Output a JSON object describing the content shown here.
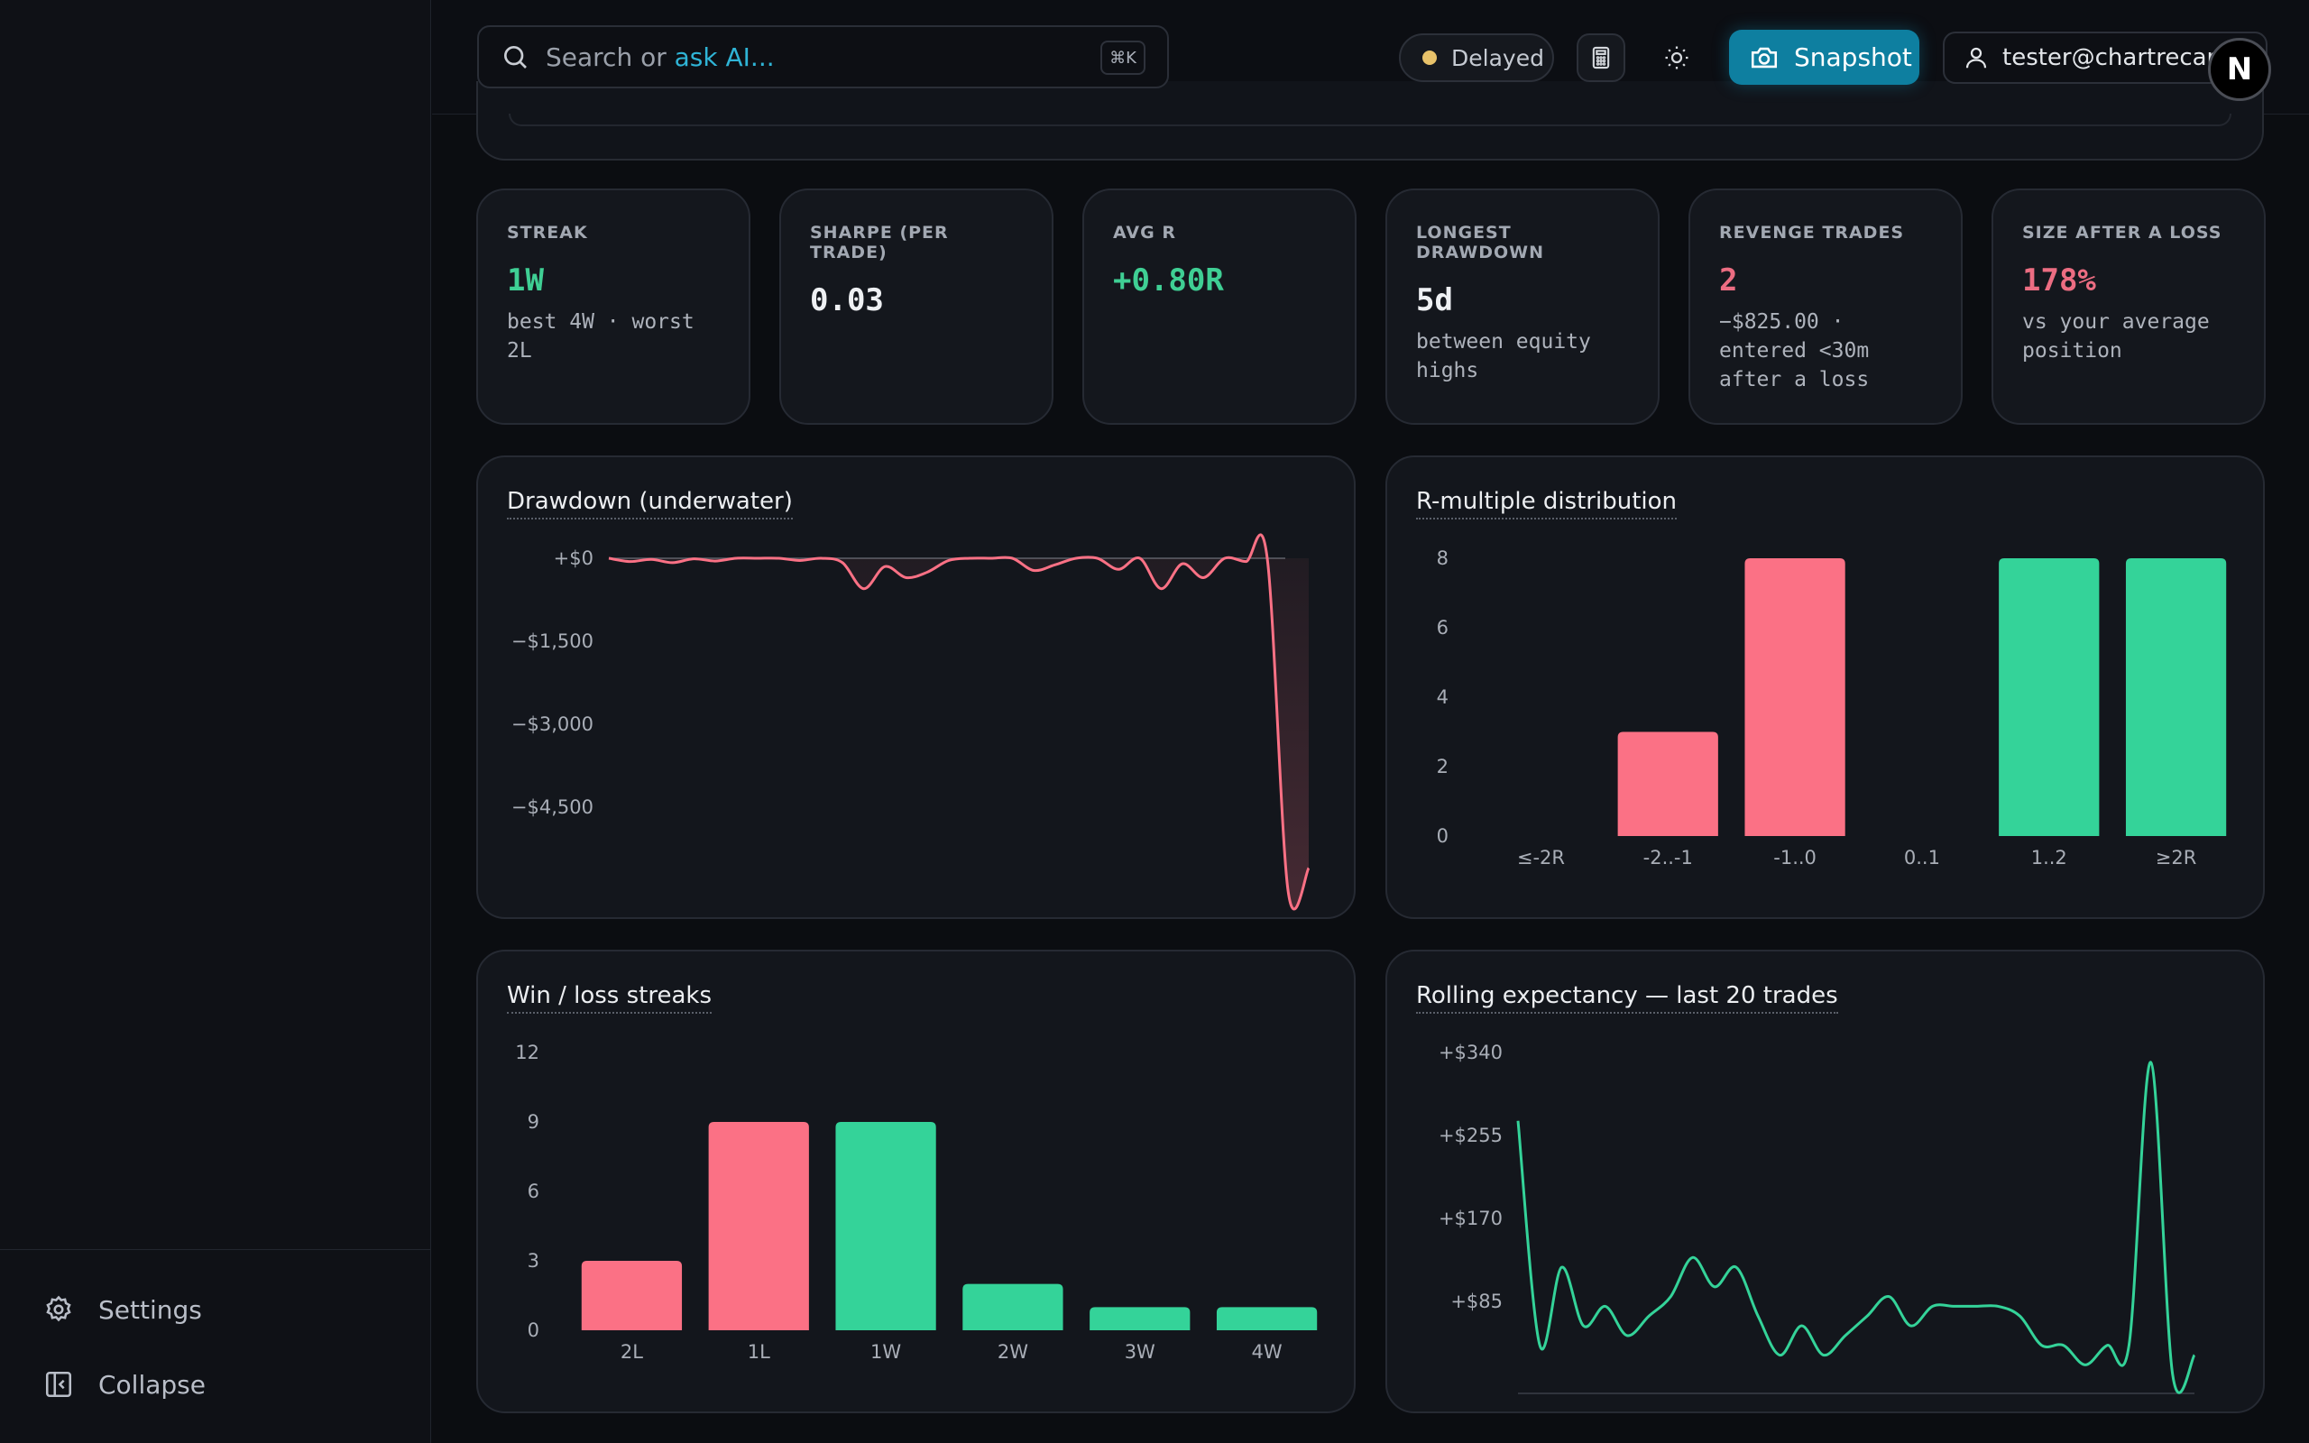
{
  "sidebar": {
    "settings_label": "Settings",
    "collapse_label": "Collapse"
  },
  "search": {
    "placeholder_prefix": "Search or ",
    "placeholder_ai": "ask AI...",
    "shortcut": "⌘K"
  },
  "header": {
    "status_label": "Delayed",
    "status_color": "#e8c26a",
    "snapshot_label": "Snapshot",
    "user_email": "tester@chartrecap.",
    "avatar_letter": "N"
  },
  "stats": [
    {
      "label": "STREAK",
      "value": "1W",
      "value_color": "green",
      "sub": "best 4W · worst 2L"
    },
    {
      "label": "SHARPE (PER TRADE)",
      "value": "0.03",
      "value_color": "white",
      "sub": ""
    },
    {
      "label": "AVG R",
      "value": "+0.80R",
      "value_color": "green",
      "sub": ""
    },
    {
      "label": "LONGEST DRAWDOWN",
      "value": "5d",
      "value_color": "white",
      "sub": "between equity highs"
    },
    {
      "label": "REVENGE TRADES",
      "value": "2",
      "value_color": "red",
      "sub": "−$825.00 · entered <30m after a loss"
    },
    {
      "label": "SIZE AFTER A LOSS",
      "value": "178%",
      "value_color": "red",
      "sub": "vs your average position"
    }
  ],
  "colors": {
    "positive": "#34d399",
    "negative": "#fb7185"
  },
  "chart_data": [
    {
      "id": "drawdown",
      "type": "area",
      "title": "Drawdown (underwater)",
      "yticks": [
        0,
        -1500,
        -3000,
        -4500
      ],
      "ytick_labels": [
        "+$0",
        "−$1,500",
        "−$3,000",
        "−$4,500"
      ],
      "ylim": [
        -6000,
        0
      ],
      "values": [
        0,
        -60,
        -20,
        -80,
        -10,
        -50,
        0,
        0,
        0,
        -40,
        0,
        -80,
        -550,
        -150,
        -350,
        -250,
        -40,
        0,
        0,
        0,
        -220,
        -120,
        0,
        0,
        -200,
        0,
        -550,
        -100,
        -350,
        0,
        -60,
        0,
        -6000,
        -5600
      ]
    },
    {
      "id": "r-multiple",
      "type": "bar",
      "title": "R-multiple distribution",
      "categories": [
        "≤-2R",
        "-2..-1",
        "-1..0",
        "0..1",
        "1..2",
        "≥2R"
      ],
      "values": [
        0,
        3,
        8,
        0,
        8,
        8
      ],
      "signs": [
        "neg",
        "neg",
        "neg",
        "pos",
        "pos",
        "pos"
      ],
      "yticks": [
        0,
        2,
        4,
        6,
        8
      ],
      "ylim": [
        0,
        8
      ]
    },
    {
      "id": "streaks",
      "type": "bar",
      "title": "Win / loss streaks",
      "categories": [
        "2L",
        "1L",
        "1W",
        "2W",
        "3W",
        "4W"
      ],
      "values": [
        3,
        9,
        9,
        2,
        1,
        1
      ],
      "signs": [
        "neg",
        "neg",
        "pos",
        "pos",
        "pos",
        "pos"
      ],
      "yticks": [
        0,
        3,
        6,
        9,
        12
      ],
      "ylim": [
        0,
        12
      ]
    },
    {
      "id": "rolling-expectancy",
      "type": "line",
      "title": "Rolling expectancy — last 20 trades",
      "yticks": [
        85,
        170,
        255,
        340
      ],
      "ytick_labels": [
        "+$85",
        "+$170",
        "+$255",
        "+$340"
      ],
      "ylim": [
        0,
        340
      ],
      "values": [
        270,
        40,
        120,
        60,
        80,
        50,
        70,
        90,
        130,
        100,
        120,
        70,
        30,
        60,
        30,
        50,
        70,
        90,
        60,
        80,
        80,
        80,
        80,
        70,
        40,
        40,
        20,
        40,
        40,
        330,
        10,
        30
      ]
    }
  ]
}
